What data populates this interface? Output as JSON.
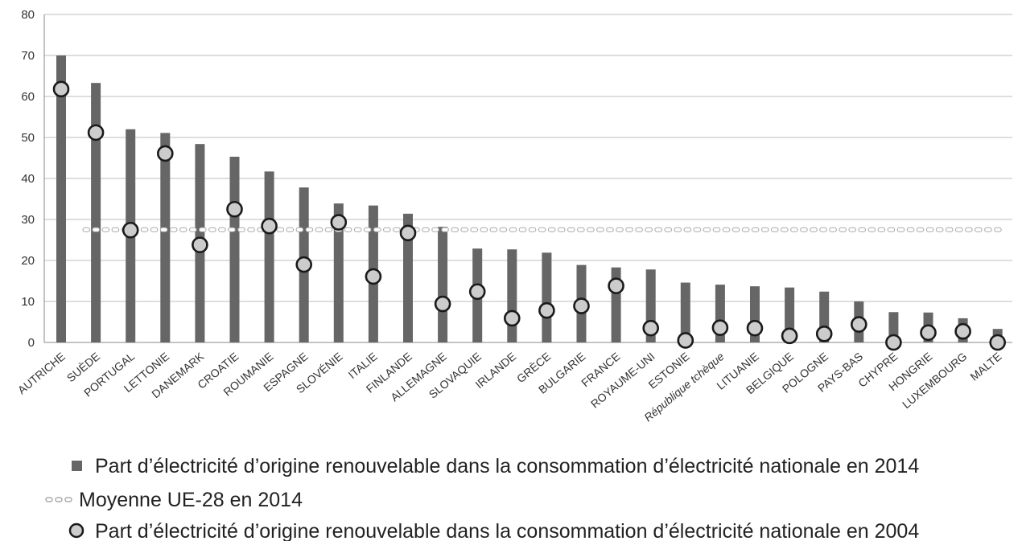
{
  "chart_data": {
    "type": "bar",
    "title": "",
    "xlabel": "",
    "ylabel": "",
    "ylim": [
      0,
      80
    ],
    "yticks": [
      0,
      10,
      20,
      30,
      40,
      50,
      60,
      70,
      80
    ],
    "grid": true,
    "legend_position": "bottom",
    "categories": [
      "AUTRICHE",
      "SUÈDE",
      "PORTUGAL",
      "LETTONIE",
      "DANEMARK",
      "CROATIE",
      "ROUMANIE",
      "ESPAGNE",
      "SLOVÉNIE",
      "ITALIE",
      "FINLANDE",
      "ALLEMAGNE",
      "SLOVAQUIE",
      "IRLANDE",
      "GRÈCE",
      "BULGARIE",
      "FRANCE",
      "ROYAUME-UNI",
      "ESTONIE",
      "République tchèque",
      "LITUANIE",
      "BELGIQUE",
      "POLOGNE",
      "PAYS-BAS",
      "CHYPRE",
      "HONGRIE",
      "LUXEMBOURG",
      "MALTE"
    ],
    "series": [
      {
        "name": "Part d’électricité d’origine renouvelable dans la consommation d’électricité nationale en 2014",
        "kind": "bar",
        "color": "#666666",
        "values": [
          70,
          63.3,
          52,
          51.1,
          48.4,
          45.3,
          41.7,
          37.8,
          33.9,
          33.4,
          31.4,
          28.2,
          22.9,
          22.7,
          21.9,
          18.9,
          18.3,
          17.8,
          14.6,
          14.1,
          13.7,
          13.4,
          12.4,
          10,
          7.4,
          7.3,
          5.9,
          3.3
        ]
      },
      {
        "name": "Moyenne UE-28 en 2014",
        "kind": "reference-line",
        "color": "#bbbbbb",
        "value": 27.5
      },
      {
        "name": "Part d’électricité d’origine renouvelable dans la consommation d’électricité nationale en 2004",
        "kind": "point",
        "color": "#cccccc",
        "values": [
          61.8,
          51.2,
          27.4,
          46.1,
          23.8,
          32.5,
          28.4,
          19,
          29.3,
          16.1,
          26.7,
          9.4,
          12.4,
          5.9,
          7.8,
          8.9,
          13.8,
          3.5,
          0.5,
          3.6,
          3.5,
          1.6,
          2.1,
          4.4,
          0,
          2.4,
          2.7,
          0
        ]
      }
    ]
  }
}
